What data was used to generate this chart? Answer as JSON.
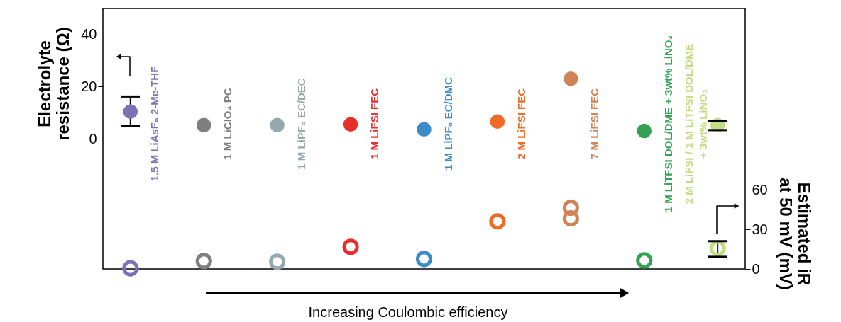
{
  "chart_data": {
    "type": "scatter",
    "categories": [
      "1.5 M LiAsF₆ 2-Me-THF",
      "1 M LiClO₄ PC",
      "1 M LiPF₆ EC/DEC",
      "1 M LiFSI FEC",
      "1 M LiPF₆ EC/DMC",
      "2 M LiFSI FEC",
      "7 M LiFSI FEC",
      "1 M LiTFSI DOL/DME + 3wt% LiNO₃",
      "2 M LiFSI / 1 M LiTFSI DOL/DME\n+ 3wt% LiNO₃"
    ],
    "ylabel": "Electrolyte\nresistance (Ω)",
    "y2label": "Estimated iR\nat 50 mV (mV)",
    "annotations": [
      "Increasing Coulombic efficiency"
    ],
    "ylim": [
      -50,
      50
    ],
    "yticks": [
      0,
      20,
      40
    ],
    "y2lim": [
      0,
      198
    ],
    "y2ticks": [
      0,
      30,
      60
    ],
    "tick_labels": "y",
    "legend": false,
    "grid": false,
    "marker": "circle",
    "series": [
      {
        "colors": [
          "#7b72b8",
          "#7f7f7f",
          "#93a9ad",
          "#e7302c",
          "#3a8bc8",
          "#ee6a26",
          "#d08354",
          "#33a353",
          "#c3dd84"
        ],
        "values": [
          10.4,
          5.2,
          5.2,
          5.5,
          3.6,
          6.6,
          23,
          3.0,
          5.2
        ],
        "errors": [
          [
            4.9,
            16.2
          ],
          null,
          null,
          null,
          null,
          null,
          null,
          null,
          [
            3.3,
            6.8
          ]
        ]
      },
      {
        "axis": "y2",
        "x": [
          "1.5 M LiAsF₆ 2-Me-THF",
          "1 M LiClO₄ PC",
          "1 M LiPF₆ EC/DEC",
          "1 M LiFSI FEC",
          "1 M LiPF₆ EC/DMC",
          "2 M LiFSI FEC",
          "7 M LiFSI FEC",
          "7 M LiFSI FEC",
          "1 M LiTFSI DOL/DME + 3wt% LiNO₃",
          "2 M LiFSI / 1 M LiTFSI DOL/DME\n+ 3wt% LiNO₃"
        ],
        "colors": [
          "#7b72b8",
          "#7f7f7f",
          "#93a9ad",
          "#e7302c",
          "#3a8bc8",
          "#ee6a26",
          "#d08354",
          "#d08354",
          "#33a353",
          "#c3dd84"
        ],
        "values": [
          0.5,
          6,
          5.5,
          16.8,
          7.6,
          36.2,
          46.5,
          38.4,
          6.5,
          15.7
        ],
        "errors": [
          null,
          null,
          null,
          null,
          null,
          null,
          null,
          null,
          null,
          [
            9.2,
            21.1
          ]
        ]
      }
    ]
  }
}
